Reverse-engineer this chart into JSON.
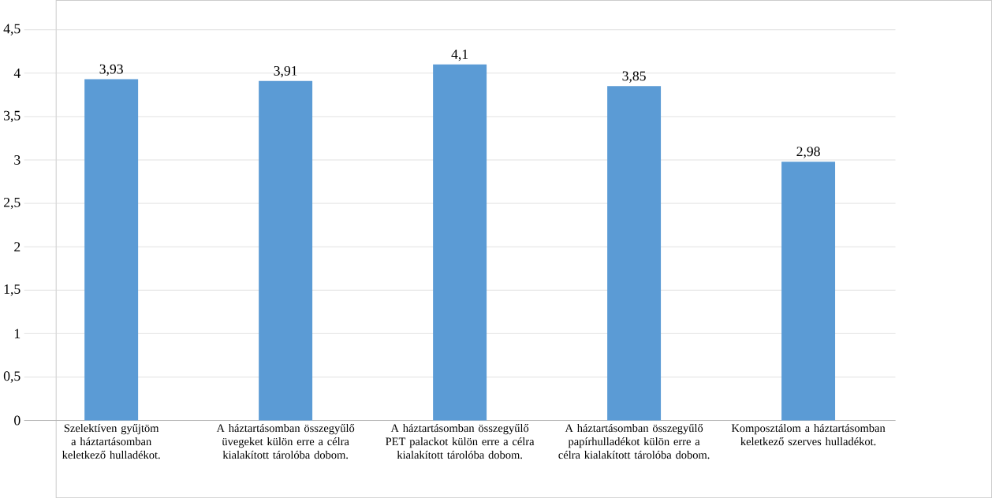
{
  "chart_data": {
    "type": "bar",
    "categories": [
      "Szelektíven gyűjtöm a háztartásomban keletkező hulladékot.",
      "A háztartásomban összegyűlő üvegeket külön erre a célra kialakított tárolóba dobom.",
      "A háztartásomban összegyűlő PET palackot külön erre a célra kialakított tárolóba dobom.",
      "A háztartásomban összegyűlő papírhulladékot külön erre a célra kialakított tárolóba dobom.",
      "Komposztálom a háztartásomban keletkező szerves hulladékot."
    ],
    "values": [
      3.93,
      3.91,
      4.1,
      3.85,
      2.98
    ],
    "value_labels": [
      "3,93",
      "3,91",
      "4,1",
      "3,85",
      "2,98"
    ],
    "color": "#5b9bd5",
    "ylim": [
      0,
      4.5
    ],
    "yticks": [
      0,
      {
        "value": 0.5,
        "label": "0,5"
      },
      1,
      {
        "value": 1.5,
        "label": "1,5"
      },
      2,
      {
        "value": 2.5,
        "label": "2,5"
      },
      3,
      {
        "value": 3.5,
        "label": "3,5"
      },
      4,
      {
        "value": 4.5,
        "label": "4,5"
      }
    ],
    "grid": "y"
  }
}
